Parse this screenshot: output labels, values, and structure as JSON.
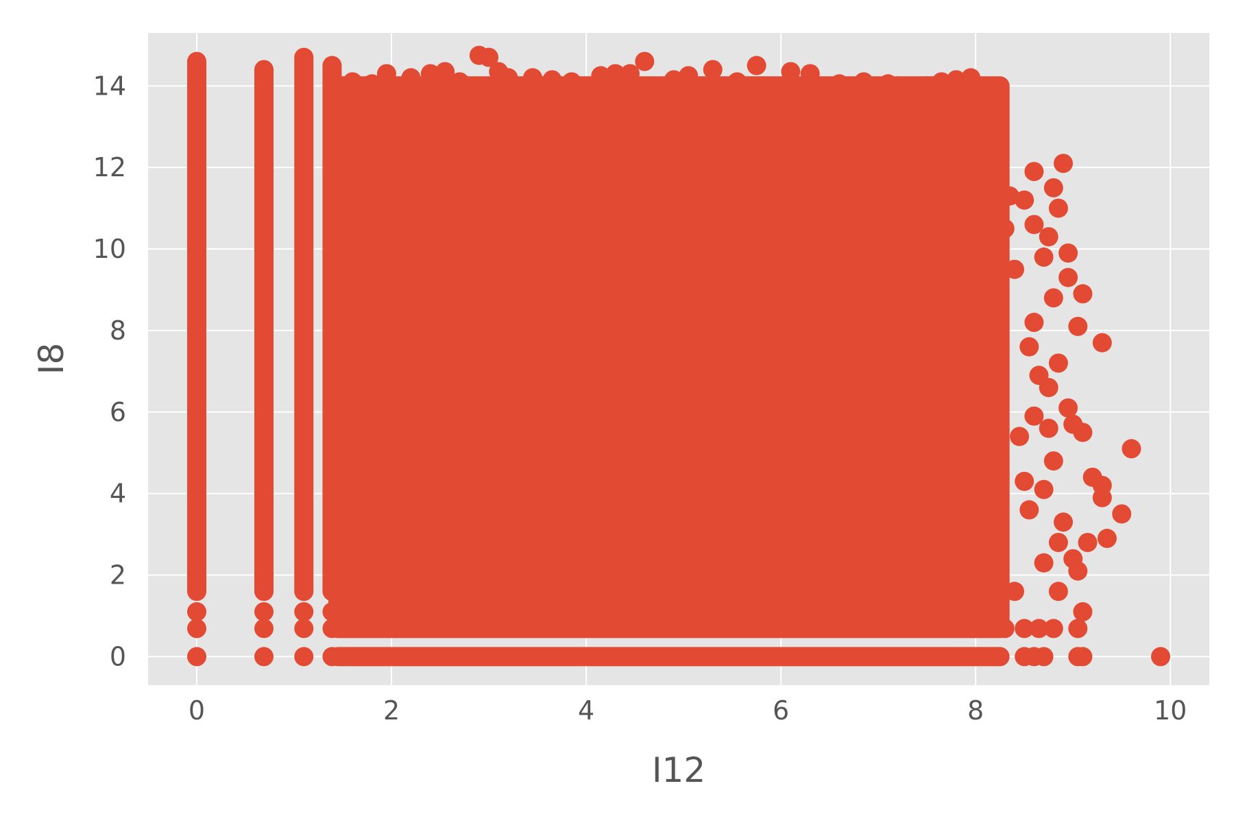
{
  "chart_data": {
    "type": "scatter",
    "title": "",
    "xlabel": "I12",
    "ylabel": "I8",
    "xlim": [
      -0.5,
      10.4
    ],
    "ylim": [
      -0.7,
      15.3
    ],
    "xticks": [
      0,
      2,
      4,
      6,
      8,
      10
    ],
    "yticks": [
      0,
      2,
      4,
      6,
      8,
      10,
      12,
      14
    ],
    "grid": true,
    "legend": "none",
    "colors": {
      "marker": "#E24A33",
      "plot_background": "#E5E5E5",
      "grid": "#FFFFFF",
      "text": "#555555"
    },
    "dense_regions": [
      {
        "x": [
          1.45,
          8.25
        ],
        "y": [
          0.69,
          14.0
        ]
      },
      {
        "x": [
          1.45,
          8.25
        ],
        "y": [
          0.0,
          0.0
        ]
      }
    ],
    "columns": [
      {
        "x": 0.0,
        "y_range": [
          1.6,
          14.6
        ]
      },
      {
        "x": 0.69,
        "y_range": [
          1.6,
          14.4
        ]
      },
      {
        "x": 1.1,
        "y_range": [
          1.6,
          14.7
        ]
      },
      {
        "x": 1.39,
        "y_range": [
          1.6,
          14.5
        ]
      }
    ],
    "series": [
      {
        "points": [
          [
            0,
            0
          ],
          [
            0,
            0.69
          ],
          [
            0,
            1.1
          ],
          [
            0.69,
            0
          ],
          [
            0.69,
            0.69
          ],
          [
            0.69,
            1.1
          ],
          [
            1.1,
            0
          ],
          [
            1.1,
            0.69
          ],
          [
            1.1,
            1.1
          ],
          [
            1.39,
            0
          ],
          [
            1.39,
            0.69
          ],
          [
            1.39,
            1.1
          ],
          [
            9.9,
            0
          ],
          [
            9.6,
            5.1
          ],
          [
            9.5,
            3.5
          ],
          [
            9.3,
            7.7
          ],
          [
            9.3,
            3.9
          ],
          [
            9.3,
            4.2
          ],
          [
            9.35,
            2.9
          ],
          [
            9.1,
            8.9
          ],
          [
            9.1,
            5.5
          ],
          [
            9.05,
            8.1
          ],
          [
            9.1,
            1.1
          ],
          [
            9.05,
            0.69
          ],
          [
            9.05,
            0
          ],
          [
            9.1,
            0
          ],
          [
            8.9,
            12.1
          ],
          [
            8.8,
            11.5
          ],
          [
            8.85,
            11.0
          ],
          [
            8.95,
            9.9
          ],
          [
            8.95,
            9.3
          ],
          [
            8.95,
            6.1
          ],
          [
            9.05,
            2.1
          ],
          [
            9.0,
            2.4
          ],
          [
            9.15,
            2.8
          ],
          [
            8.85,
            2.8
          ],
          [
            8.6,
            11.9
          ],
          [
            8.5,
            11.2
          ],
          [
            8.6,
            10.6
          ],
          [
            8.8,
            8.8
          ],
          [
            8.85,
            7.2
          ],
          [
            8.75,
            6.6
          ],
          [
            8.75,
            5.6
          ],
          [
            8.85,
            1.6
          ],
          [
            8.7,
            0
          ],
          [
            8.45,
            5.4
          ],
          [
            8.8,
            4.8
          ],
          [
            9.2,
            4.4
          ],
          [
            8.6,
            5.9
          ],
          [
            8.25,
            12.2
          ],
          [
            8.35,
            11.3
          ],
          [
            8.7,
            9.8
          ],
          [
            8.75,
            10.3
          ],
          [
            8.6,
            8.2
          ],
          [
            8.5,
            4.3
          ],
          [
            8.3,
            0.69
          ],
          [
            8.5,
            0.69
          ],
          [
            8.65,
            0.69
          ],
          [
            8.8,
            0.69
          ],
          [
            8.5,
            0
          ],
          [
            8.6,
            0
          ],
          [
            8.3,
            10.5
          ],
          [
            8.4,
            9.5
          ],
          [
            8.55,
            7.6
          ],
          [
            8.65,
            6.9
          ],
          [
            8.55,
            3.6
          ],
          [
            8.25,
            2.1
          ],
          [
            8.4,
            1.6
          ],
          [
            8.7,
            2.3
          ],
          [
            8.9,
            3.3
          ],
          [
            9.0,
            5.7
          ],
          [
            8.7,
            4.1
          ],
          [
            2.9,
            14.75
          ],
          [
            3.0,
            14.7
          ],
          [
            1.95,
            14.3
          ],
          [
            2.4,
            14.3
          ],
          [
            2.55,
            14.35
          ],
          [
            4.6,
            14.6
          ],
          [
            5.75,
            14.5
          ],
          [
            6.1,
            14.35
          ],
          [
            5.3,
            14.4
          ],
          [
            4.3,
            14.3
          ],
          [
            4.15,
            14.25
          ],
          [
            3.45,
            14.2
          ],
          [
            3.65,
            14.15
          ],
          [
            3.85,
            14.1
          ],
          [
            2.2,
            14.2
          ],
          [
            1.6,
            14.1
          ],
          [
            1.8,
            14.05
          ],
          [
            2.7,
            14.1
          ],
          [
            3.2,
            14.2
          ],
          [
            6.3,
            14.3
          ],
          [
            6.85,
            14.1
          ],
          [
            7.2,
            14.0
          ],
          [
            7.5,
            14.0
          ],
          [
            7.8,
            14.15
          ],
          [
            7.95,
            14.2
          ],
          [
            5.05,
            14.25
          ],
          [
            5.55,
            14.1
          ],
          [
            6.6,
            14.05
          ],
          [
            7.35,
            13.95
          ],
          [
            8.05,
            13.8
          ],
          [
            8.1,
            13.6
          ],
          [
            8.15,
            13.4
          ],
          [
            8.2,
            13.0
          ],
          [
            8.15,
            12.6
          ],
          [
            4.9,
            14.15
          ],
          [
            7.1,
            14.05
          ],
          [
            7.65,
            14.1
          ],
          [
            3.1,
            14.35
          ],
          [
            4.45,
            14.3
          ]
        ]
      }
    ]
  }
}
